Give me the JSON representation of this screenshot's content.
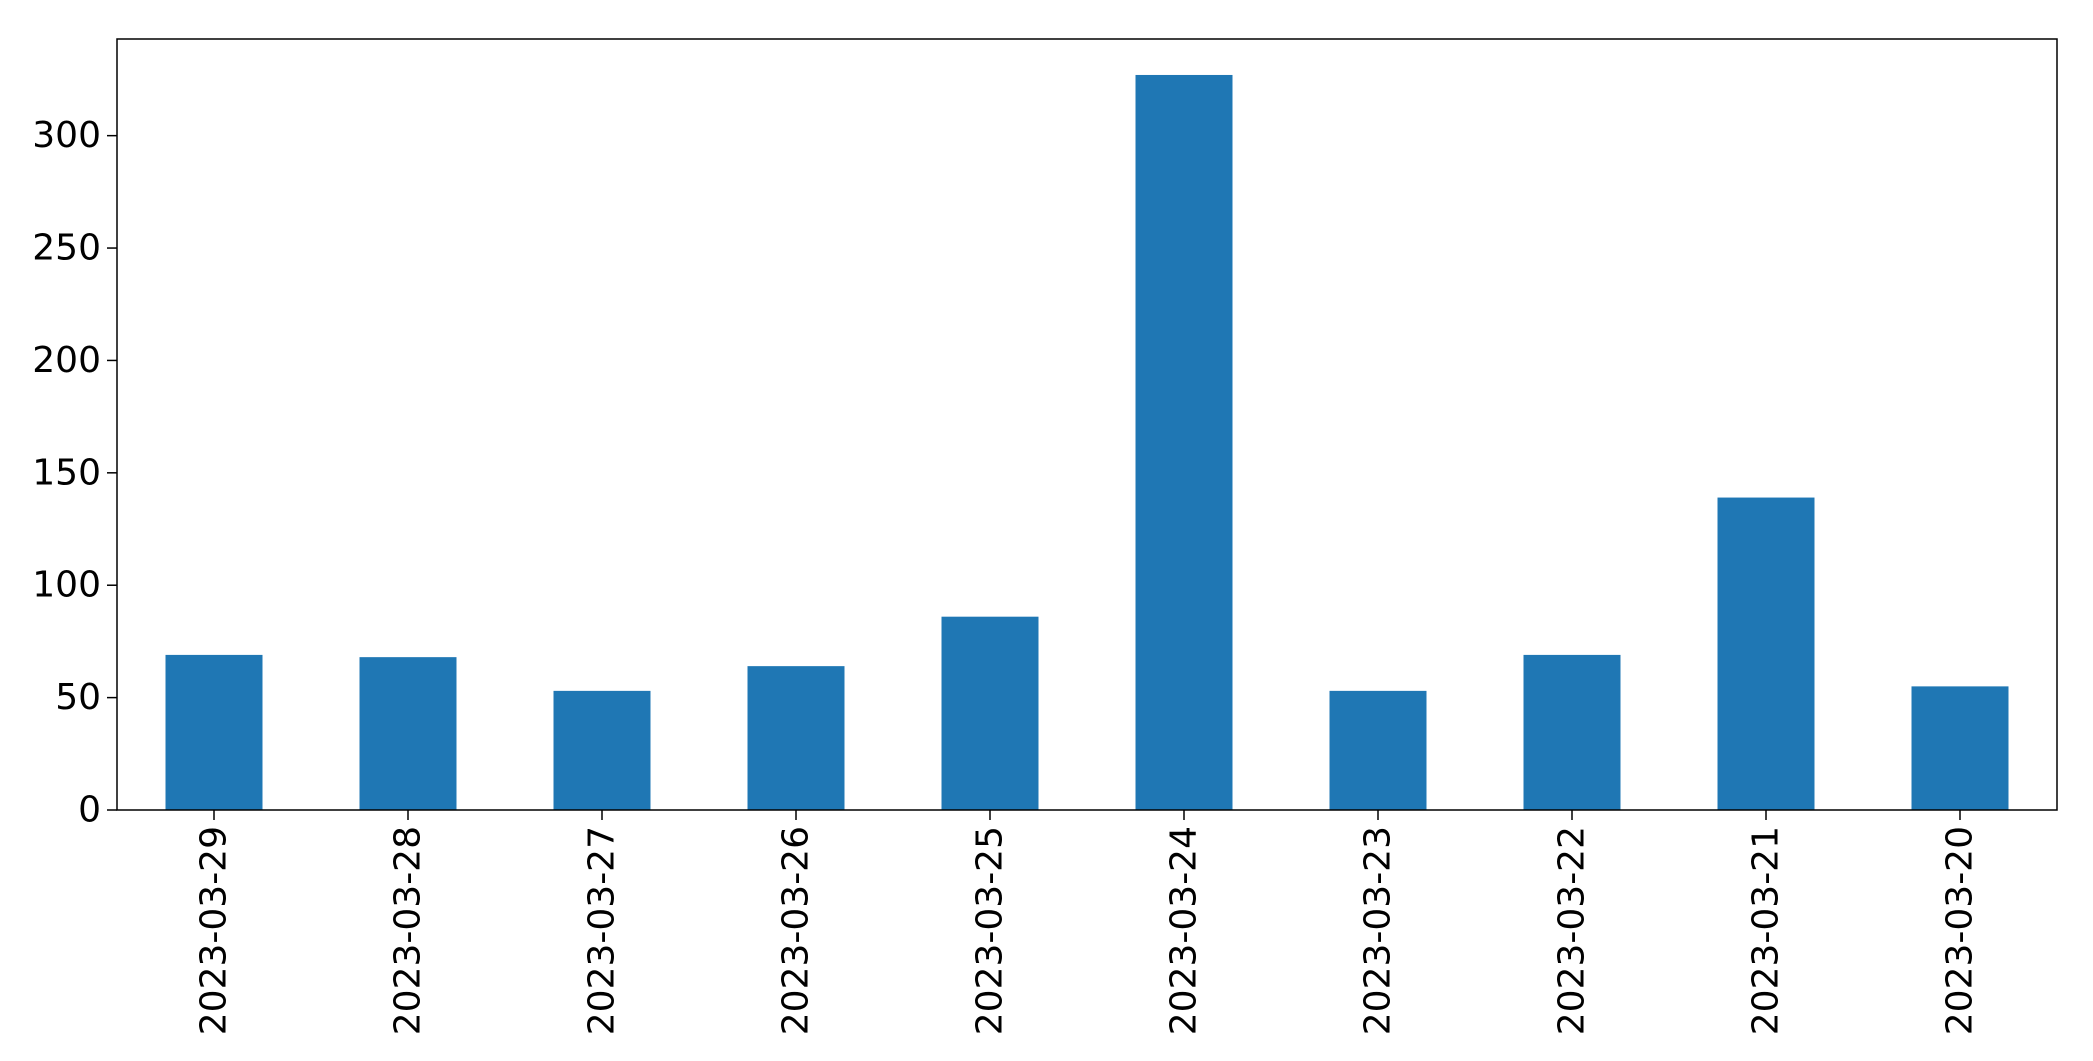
{
  "chart_data": {
    "type": "bar",
    "title": "",
    "xlabel": "",
    "ylabel": "",
    "categories": [
      "2023-03-29",
      "2023-03-28",
      "2023-03-27",
      "2023-03-26",
      "2023-03-25",
      "2023-03-24",
      "2023-03-23",
      "2023-03-22",
      "2023-03-21",
      "2023-03-20"
    ],
    "values": [
      69,
      68,
      53,
      64,
      86,
      327,
      53,
      69,
      139,
      55
    ],
    "ylim": [
      0,
      343
    ],
    "yticks": [
      0,
      50,
      100,
      150,
      200,
      250,
      300
    ],
    "bar_color": "#1f77b4",
    "grid": false,
    "legend": "none",
    "xtick_rotation": "vertical"
  }
}
